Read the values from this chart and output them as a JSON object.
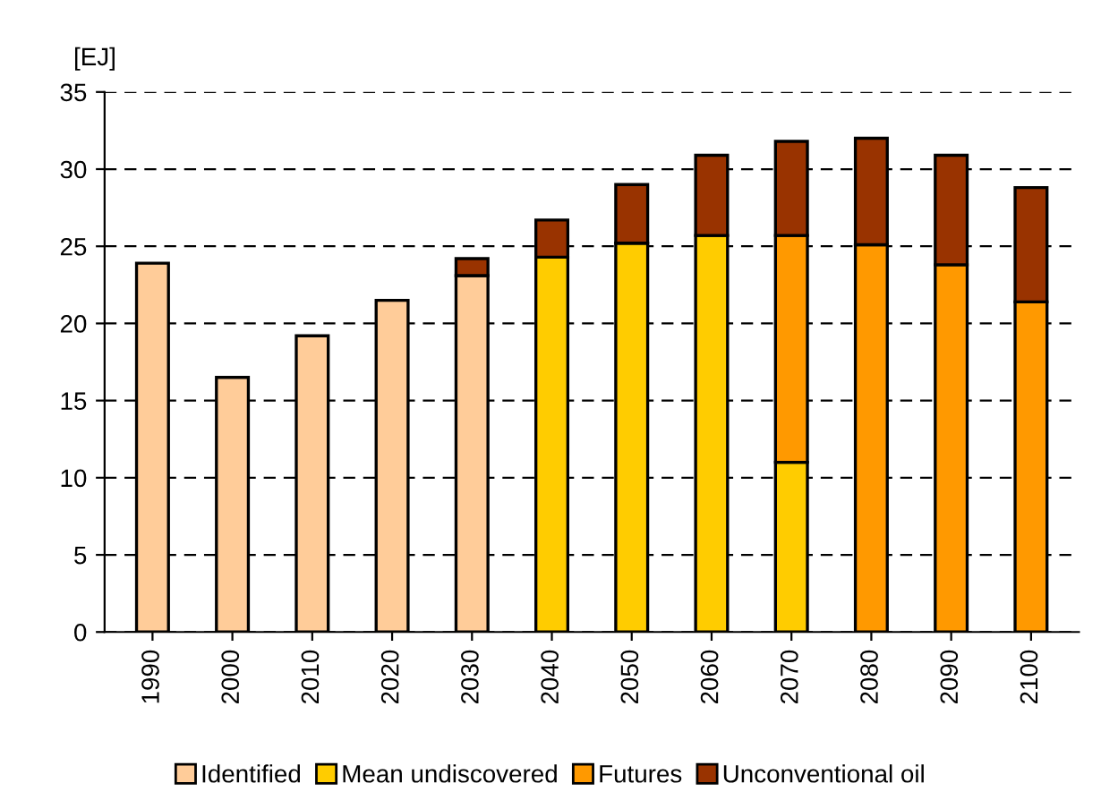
{
  "chart_data": {
    "type": "bar",
    "stacked": true,
    "ylabel": "[EJ]",
    "categories": [
      "1990",
      "2000",
      "2010",
      "2020",
      "2030",
      "2040",
      "2050",
      "2060",
      "2070",
      "2080",
      "2090",
      "2100"
    ],
    "series": [
      {
        "name": "Identified",
        "color": "#ffcc99",
        "values": [
          23.9,
          16.5,
          19.2,
          21.5,
          23.1,
          null,
          null,
          null,
          null,
          null,
          null,
          null
        ]
      },
      {
        "name": "Mean undiscovered",
        "color": "#ffcc00",
        "values": [
          null,
          null,
          null,
          null,
          null,
          24.3,
          25.2,
          25.7,
          11.0,
          null,
          null,
          null
        ]
      },
      {
        "name": "Futures",
        "color": "#ff9900",
        "values": [
          null,
          null,
          null,
          null,
          null,
          null,
          null,
          null,
          14.7,
          25.1,
          23.8,
          21.4
        ]
      },
      {
        "name": "Unconventional oil",
        "color": "#993300",
        "values": [
          null,
          null,
          null,
          null,
          1.1,
          2.4,
          3.8,
          5.2,
          6.1,
          6.9,
          7.1,
          7.4
        ]
      }
    ],
    "ylim": [
      0,
      35
    ],
    "yticks": [
      0,
      5,
      10,
      15,
      20,
      25,
      30,
      35
    ],
    "grid": "y",
    "legend": "bottom"
  }
}
